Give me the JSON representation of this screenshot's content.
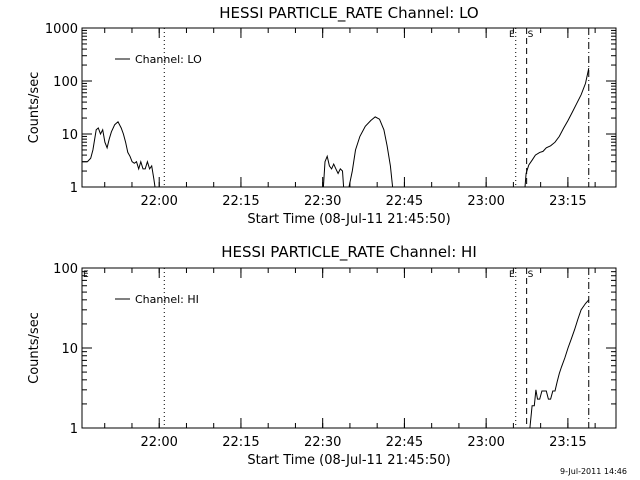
{
  "chart_data": [
    {
      "type": "line",
      "title": "HESSI PARTICLE_RATE Channel: LO",
      "xlabel": "Start Time (08-Jul-11 21:45:50)",
      "ylabel": "Counts/sec",
      "yscale": "log",
      "ylim": [
        1,
        1000
      ],
      "xlim_minutes": [
        0,
        98
      ],
      "y_ticks": [
        "1",
        "10",
        "100",
        "1000"
      ],
      "x_ticks": [
        {
          "label": "22:00",
          "minute": 14.17
        },
        {
          "label": "22:15",
          "minute": 29.17
        },
        {
          "label": "22:30",
          "minute": 44.17
        },
        {
          "label": "22:45",
          "minute": 59.17
        },
        {
          "label": "23:00",
          "minute": 74.17
        },
        {
          "label": "23:15",
          "minute": 89.17
        }
      ],
      "vlines": [
        {
          "minute": 15.1,
          "style": "dotted",
          "label": ""
        },
        {
          "minute": 79.6,
          "style": "dotted",
          "label": "E"
        },
        {
          "minute": 81.6,
          "style": "dashed",
          "label": "S"
        },
        {
          "minute": 93.0,
          "style": "dashdot",
          "label": ""
        }
      ],
      "legend": {
        "label": "Channel: LO",
        "position": "top-left"
      },
      "series": [
        {
          "name": "Channel: LO",
          "segments": [
            [
              [
                0,
                3
              ],
              [
                1,
                3
              ],
              [
                1.6,
                3.5
              ],
              [
                2,
                5
              ],
              [
                2.6,
                12
              ],
              [
                3,
                13
              ],
              [
                3.4,
                10
              ],
              [
                3.8,
                12
              ],
              [
                4.2,
                7
              ],
              [
                4.6,
                5.5
              ],
              [
                5,
                8
              ],
              [
                5.4,
                11
              ],
              [
                6,
                15
              ],
              [
                6.6,
                17
              ],
              [
                7.2,
                13
              ],
              [
                7.6,
                10
              ],
              [
                8,
                7
              ],
              [
                8.4,
                4.5
              ],
              [
                8.8,
                3.8
              ],
              [
                9.2,
                3
              ],
              [
                9.6,
                2.8
              ],
              [
                10,
                3
              ],
              [
                10.4,
                2.2
              ],
              [
                10.8,
                3
              ],
              [
                11.2,
                2.2
              ],
              [
                11.6,
                2.2
              ],
              [
                12,
                3
              ],
              [
                12.4,
                2.2
              ],
              [
                12.8,
                2.5
              ],
              [
                13.2,
                1.4
              ],
              [
                13.4,
                1
              ]
            ],
            [
              [
                44.3,
                1
              ],
              [
                44.6,
                3
              ],
              [
                45,
                3.8
              ],
              [
                45.4,
                2.5
              ],
              [
                45.8,
                2.2
              ],
              [
                46.2,
                2.7
              ],
              [
                46.6,
                2.2
              ],
              [
                47,
                1.8
              ],
              [
                47.4,
                2.2
              ],
              [
                47.8,
                2
              ],
              [
                48,
                1
              ]
            ],
            [
              [
                49,
                1
              ],
              [
                49.6,
                2
              ],
              [
                50.2,
                5
              ],
              [
                51,
                9
              ],
              [
                52,
                14
              ],
              [
                53,
                18
              ],
              [
                53.8,
                21
              ],
              [
                54.6,
                19
              ],
              [
                55.4,
                12
              ],
              [
                56,
                6
              ],
              [
                56.6,
                2.5
              ],
              [
                57,
                1
              ]
            ],
            [
              [
                81.3,
                1
              ],
              [
                81.5,
                1.8
              ],
              [
                82,
                2.6
              ],
              [
                82.6,
                3.2
              ],
              [
                83.2,
                4
              ],
              [
                84,
                4.5
              ],
              [
                84.6,
                4.7
              ],
              [
                85.2,
                5.5
              ],
              [
                86,
                6
              ],
              [
                86.8,
                7
              ],
              [
                87.6,
                9
              ],
              [
                88.4,
                13
              ],
              [
                89.2,
                18
              ],
              [
                90,
                26
              ],
              [
                90.8,
                38
              ],
              [
                91.6,
                55
              ],
              [
                92.4,
                90
              ],
              [
                93,
                175
              ]
            ]
          ]
        }
      ]
    },
    {
      "type": "line",
      "title": "HESSI PARTICLE_RATE Channel: HI",
      "xlabel": "Start Time (08-Jul-11 21:45:50)",
      "ylabel": "Counts/sec",
      "yscale": "log",
      "ylim": [
        1,
        100
      ],
      "xlim_minutes": [
        0,
        98
      ],
      "y_ticks": [
        "1",
        "10",
        "100"
      ],
      "x_ticks": [
        {
          "label": "22:00",
          "minute": 14.17
        },
        {
          "label": "22:15",
          "minute": 29.17
        },
        {
          "label": "22:30",
          "minute": 44.17
        },
        {
          "label": "22:45",
          "minute": 59.17
        },
        {
          "label": "23:00",
          "minute": 74.17
        },
        {
          "label": "23:15",
          "minute": 89.17
        }
      ],
      "vlines": [
        {
          "minute": 15.1,
          "style": "dotted",
          "label": ""
        },
        {
          "minute": 79.6,
          "style": "dotted",
          "label": "E"
        },
        {
          "minute": 81.6,
          "style": "dashed",
          "label": "S"
        },
        {
          "minute": 93.0,
          "style": "dashdot",
          "label": ""
        }
      ],
      "left_marker": "E",
      "legend": {
        "label": "Channel: HI",
        "position": "top-left"
      },
      "series": [
        {
          "name": "Channel: HI",
          "segments": [
            [
              [
                82.2,
                1
              ],
              [
                82.6,
                1.9
              ],
              [
                83,
                1.9
              ],
              [
                83.3,
                3
              ],
              [
                83.6,
                2.3
              ],
              [
                84,
                2.3
              ],
              [
                84.4,
                2.9
              ],
              [
                84.8,
                2.9
              ],
              [
                85.2,
                2.9
              ],
              [
                85.6,
                2.3
              ],
              [
                86,
                2.3
              ],
              [
                86.4,
                2.9
              ],
              [
                86.8,
                2.9
              ],
              [
                87.2,
                3.8
              ],
              [
                87.6,
                4.8
              ],
              [
                88,
                5.8
              ],
              [
                88.6,
                7.5
              ],
              [
                89.2,
                10
              ],
              [
                89.8,
                13
              ],
              [
                90.4,
                17
              ],
              [
                91,
                23
              ],
              [
                91.6,
                30
              ],
              [
                92.4,
                36
              ],
              [
                93,
                40
              ]
            ]
          ]
        }
      ]
    }
  ],
  "footer": {
    "timestamp": "9-Jul-2011 14:46"
  }
}
